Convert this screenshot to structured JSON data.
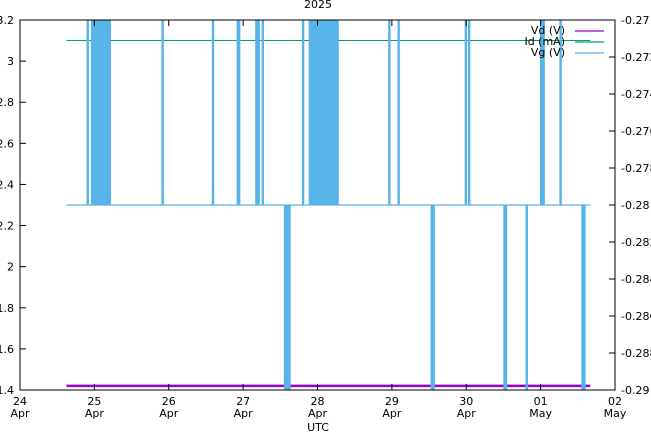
{
  "chart_data": {
    "type": "line",
    "title": "2025",
    "xlabel": "UTC",
    "ylabel": "",
    "y2label": "",
    "x_range": [
      "2025-04-24T00:00",
      "2025-05-02T00:00"
    ],
    "x_ticks": [
      {
        "t": "2025-04-24T00:00",
        "line1": "24",
        "line2": "Apr"
      },
      {
        "t": "2025-04-25T00:00",
        "line1": "25",
        "line2": "Apr"
      },
      {
        "t": "2025-04-26T00:00",
        "line1": "26",
        "line2": "Apr"
      },
      {
        "t": "2025-04-27T00:00",
        "line1": "27",
        "line2": "Apr"
      },
      {
        "t": "2025-04-28T00:00",
        "line1": "28",
        "line2": "Apr"
      },
      {
        "t": "2025-04-29T00:00",
        "line1": "29",
        "line2": "Apr"
      },
      {
        "t": "2025-04-30T00:00",
        "line1": "30",
        "line2": "Apr"
      },
      {
        "t": "2025-05-01T00:00",
        "line1": "01",
        "line2": "May"
      },
      {
        "t": "2025-05-02T00:00",
        "line1": "02",
        "line2": "May"
      }
    ],
    "ylim": [
      1.4,
      3.2
    ],
    "y_ticks": [
      "1.4",
      "1.6",
      "1.8",
      "2",
      "2.2",
      "2.4",
      "2.6",
      "2.8",
      "3",
      "3.2"
    ],
    "y2lim": [
      -0.29,
      -0.27
    ],
    "y2_ticks": [
      "-0.29",
      "-0.288",
      "-0.286",
      "-0.284",
      "-0.282",
      "-0.28",
      "-0.278",
      "-0.276",
      "-0.274",
      "-0.272",
      "-0.27"
    ],
    "legend_position": "top-right",
    "grid": false,
    "series": [
      {
        "name": "Vd (V)",
        "axis": "left",
        "color": "#9400d3",
        "value": 1.42,
        "x_start": "2025-04-24T15:00",
        "x_end": "2025-05-01T16:00"
      },
      {
        "name": "Id (mA)",
        "axis": "left",
        "color": "#009e73",
        "value": 3.1,
        "x_start": "2025-04-24T15:00",
        "x_end": "2025-05-01T16:00"
      },
      {
        "name": "Vg (V)",
        "axis": "right",
        "color": "#56b4e9",
        "baseline": -0.28,
        "high": -0.27,
        "low": -0.29,
        "x_start": "2025-04-24T15:00",
        "x_end": "2025-05-01T16:00",
        "high_bursts": [
          [
            "2025-04-24T21:40",
            "2025-04-24T21:50"
          ],
          [
            "2025-04-24T23:05",
            "2025-04-25T05:10"
          ],
          [
            "2025-04-25T21:50",
            "2025-04-25T22:10"
          ],
          [
            "2025-04-26T14:05",
            "2025-04-26T14:15"
          ],
          [
            "2025-04-26T22:05",
            "2025-04-26T22:55"
          ],
          [
            "2025-04-27T04:05",
            "2025-04-27T04:15"
          ],
          [
            "2025-04-27T04:50",
            "2025-04-27T05:05"
          ],
          [
            "2025-04-27T06:10",
            "2025-04-27T06:25"
          ],
          [
            "2025-04-27T19:10",
            "2025-04-27T19:20"
          ],
          [
            "2025-04-27T21:20",
            "2025-04-28T06:40"
          ],
          [
            "2025-04-28T23:00",
            "2025-04-28T23:10"
          ],
          [
            "2025-04-29T02:00",
            "2025-04-29T02:10"
          ],
          [
            "2025-04-29T23:40",
            "2025-04-29T23:50"
          ],
          [
            "2025-04-30T00:45",
            "2025-04-30T01:00"
          ],
          [
            "2025-05-01T00:00",
            "2025-05-01T01:10"
          ],
          [
            "2025-05-01T06:15",
            "2025-05-01T06:25"
          ]
        ],
        "low_bursts": [
          [
            "2025-04-27T13:20",
            "2025-04-27T15:10"
          ],
          [
            "2025-04-29T12:40",
            "2025-04-29T13:40"
          ],
          [
            "2025-04-30T12:10",
            "2025-04-30T13:00"
          ],
          [
            "2025-04-30T19:20",
            "2025-04-30T19:35"
          ],
          [
            "2025-05-01T13:20",
            "2025-05-01T14:20"
          ]
        ]
      }
    ]
  }
}
